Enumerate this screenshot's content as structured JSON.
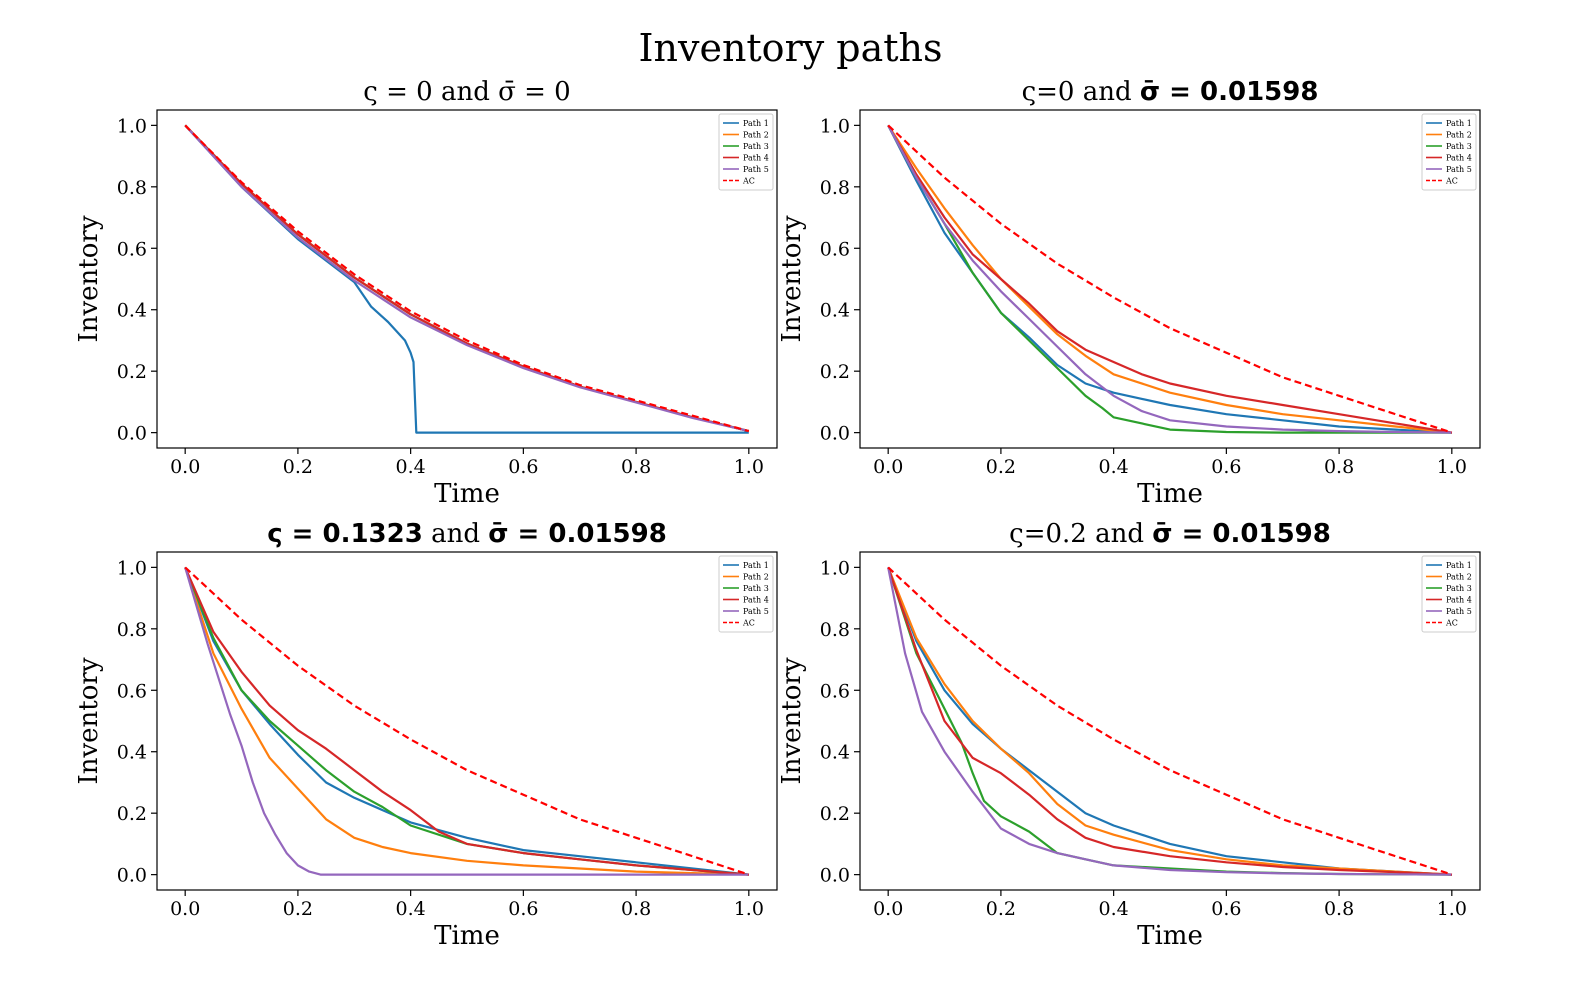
{
  "figure": {
    "title": "Inventory paths"
  },
  "colors": {
    "path1": "#1f77b4",
    "path2": "#ff7f0e",
    "path3": "#2ca02c",
    "path4": "#d62728",
    "path5": "#9467bd",
    "ac": "#ff0000"
  },
  "chart_data": [
    {
      "type": "line",
      "title": "ς = 0 and σ̄ = 0",
      "xlabel": "Time",
      "ylabel": "Inventory",
      "xlim": [
        -0.05,
        1.05
      ],
      "ylim": [
        -0.05,
        1.05
      ],
      "xticks": [
        "0.0",
        "0.2",
        "0.4",
        "0.6",
        "0.8",
        "1.0"
      ],
      "yticks": [
        "0.0",
        "0.2",
        "0.4",
        "0.6",
        "0.8",
        "1.0"
      ],
      "legend": "top-right",
      "series": [
        {
          "name": "Path 1",
          "color": "#1f77b4",
          "x": [
            0,
            0.1,
            0.2,
            0.3,
            0.33,
            0.36,
            0.39,
            0.4,
            0.405,
            0.41,
            0.42,
            0.5,
            1.0
          ],
          "y": [
            1,
            0.8,
            0.63,
            0.49,
            0.41,
            0.36,
            0.3,
            0.26,
            0.23,
            0.0,
            0.0,
            0.0,
            0.0
          ]
        },
        {
          "name": "Path 2",
          "color": "#ff7f0e",
          "x": [
            0,
            0.1,
            0.2,
            0.3,
            0.4,
            0.5,
            0.6,
            0.7,
            0.8,
            0.9,
            1.0
          ],
          "y": [
            1,
            0.81,
            0.645,
            0.505,
            0.385,
            0.29,
            0.215,
            0.15,
            0.1,
            0.05,
            0.005
          ]
        },
        {
          "name": "Path 3",
          "color": "#2ca02c",
          "x": [
            0,
            0.1,
            0.2,
            0.3,
            0.4,
            0.5,
            0.6,
            0.7,
            0.8,
            0.9,
            1.0
          ],
          "y": [
            1,
            0.81,
            0.645,
            0.505,
            0.385,
            0.29,
            0.215,
            0.15,
            0.1,
            0.05,
            0.005
          ]
        },
        {
          "name": "Path 4",
          "color": "#d62728",
          "x": [
            0,
            0.1,
            0.2,
            0.3,
            0.4,
            0.5,
            0.6,
            0.7,
            0.8,
            0.9,
            1.0
          ],
          "y": [
            1,
            0.81,
            0.645,
            0.505,
            0.385,
            0.29,
            0.215,
            0.15,
            0.1,
            0.05,
            0.005
          ]
        },
        {
          "name": "Path 5",
          "color": "#9467bd",
          "x": [
            0,
            0.1,
            0.2,
            0.3,
            0.4,
            0.5,
            0.6,
            0.7,
            0.8,
            0.9,
            1.0
          ],
          "y": [
            1,
            0.8,
            0.635,
            0.495,
            0.375,
            0.285,
            0.21,
            0.148,
            0.098,
            0.048,
            0.005
          ]
        },
        {
          "name": "AC",
          "color": "#ff0000",
          "dashed": true,
          "x": [
            0,
            0.1,
            0.2,
            0.3,
            0.4,
            0.5,
            0.6,
            0.7,
            0.8,
            0.9,
            1.0
          ],
          "y": [
            1,
            0.815,
            0.655,
            0.515,
            0.395,
            0.3,
            0.22,
            0.155,
            0.105,
            0.055,
            0.005
          ]
        }
      ]
    },
    {
      "type": "line",
      "title": "ς=0 and σ̄ = 0.01598",
      "xlabel": "Time",
      "ylabel": "Inventory",
      "xlim": [
        -0.05,
        1.05
      ],
      "ylim": [
        -0.05,
        1.05
      ],
      "xticks": [
        "0.0",
        "0.2",
        "0.4",
        "0.6",
        "0.8",
        "1.0"
      ],
      "yticks": [
        "0.0",
        "0.2",
        "0.4",
        "0.6",
        "0.8",
        "1.0"
      ],
      "legend": "top-right",
      "series": [
        {
          "name": "Path 1",
          "color": "#1f77b4",
          "x": [
            0,
            0.05,
            0.1,
            0.15,
            0.2,
            0.25,
            0.3,
            0.35,
            0.4,
            0.5,
            0.6,
            0.7,
            0.8,
            0.9,
            1.0
          ],
          "y": [
            1,
            0.82,
            0.65,
            0.52,
            0.39,
            0.31,
            0.22,
            0.16,
            0.13,
            0.09,
            0.06,
            0.04,
            0.02,
            0.01,
            0.0
          ]
        },
        {
          "name": "Path 2",
          "color": "#ff7f0e",
          "x": [
            0,
            0.05,
            0.1,
            0.15,
            0.2,
            0.25,
            0.3,
            0.35,
            0.4,
            0.5,
            0.6,
            0.7,
            0.8,
            0.9,
            1.0
          ],
          "y": [
            1,
            0.86,
            0.73,
            0.61,
            0.5,
            0.41,
            0.32,
            0.25,
            0.19,
            0.13,
            0.09,
            0.06,
            0.04,
            0.02,
            0.0
          ]
        },
        {
          "name": "Path 3",
          "color": "#2ca02c",
          "x": [
            0,
            0.05,
            0.1,
            0.15,
            0.2,
            0.25,
            0.3,
            0.35,
            0.38,
            0.4,
            0.5,
            0.6,
            0.7,
            0.8,
            0.9,
            1.0
          ],
          "y": [
            1,
            0.83,
            0.68,
            0.52,
            0.39,
            0.3,
            0.21,
            0.12,
            0.08,
            0.05,
            0.01,
            0.002,
            0,
            0,
            0,
            0
          ]
        },
        {
          "name": "Path 4",
          "color": "#d62728",
          "x": [
            0,
            0.05,
            0.1,
            0.15,
            0.2,
            0.25,
            0.3,
            0.35,
            0.4,
            0.45,
            0.5,
            0.6,
            0.7,
            0.8,
            0.9,
            1.0
          ],
          "y": [
            1,
            0.84,
            0.7,
            0.58,
            0.5,
            0.42,
            0.33,
            0.27,
            0.23,
            0.19,
            0.16,
            0.12,
            0.09,
            0.06,
            0.03,
            0.0
          ]
        },
        {
          "name": "Path 5",
          "color": "#9467bd",
          "x": [
            0,
            0.05,
            0.1,
            0.15,
            0.2,
            0.25,
            0.3,
            0.35,
            0.4,
            0.45,
            0.5,
            0.6,
            0.7,
            0.8,
            0.9,
            1.0
          ],
          "y": [
            1,
            0.83,
            0.68,
            0.56,
            0.46,
            0.37,
            0.28,
            0.19,
            0.12,
            0.07,
            0.04,
            0.02,
            0.01,
            0.005,
            0.002,
            0.0
          ]
        },
        {
          "name": "AC",
          "color": "#ff0000",
          "dashed": true,
          "x": [
            0,
            0.1,
            0.2,
            0.3,
            0.4,
            0.5,
            0.6,
            0.7,
            0.8,
            0.9,
            1.0
          ],
          "y": [
            1,
            0.83,
            0.68,
            0.55,
            0.44,
            0.34,
            0.26,
            0.18,
            0.12,
            0.06,
            0.0
          ]
        }
      ]
    },
    {
      "type": "line",
      "title": "ς = 0.1323 and σ̄ = 0.01598",
      "xlabel": "Time",
      "ylabel": "Inventory",
      "xlim": [
        -0.05,
        1.05
      ],
      "ylim": [
        -0.05,
        1.05
      ],
      "xticks": [
        "0.0",
        "0.2",
        "0.4",
        "0.6",
        "0.8",
        "1.0"
      ],
      "yticks": [
        "0.0",
        "0.2",
        "0.4",
        "0.6",
        "0.8",
        "1.0"
      ],
      "legend": "top-right",
      "series": [
        {
          "name": "Path 1",
          "color": "#1f77b4",
          "x": [
            0,
            0.05,
            0.1,
            0.15,
            0.2,
            0.25,
            0.3,
            0.35,
            0.4,
            0.5,
            0.6,
            0.7,
            0.8,
            0.9,
            1.0
          ],
          "y": [
            1,
            0.76,
            0.6,
            0.49,
            0.39,
            0.3,
            0.25,
            0.21,
            0.17,
            0.12,
            0.08,
            0.06,
            0.04,
            0.02,
            0.0
          ]
        },
        {
          "name": "Path 2",
          "color": "#ff7f0e",
          "x": [
            0,
            0.05,
            0.1,
            0.15,
            0.2,
            0.25,
            0.3,
            0.35,
            0.4,
            0.5,
            0.6,
            0.7,
            0.8,
            0.9,
            1.0
          ],
          "y": [
            1,
            0.72,
            0.54,
            0.38,
            0.28,
            0.18,
            0.12,
            0.09,
            0.07,
            0.045,
            0.03,
            0.02,
            0.01,
            0.005,
            0.0
          ]
        },
        {
          "name": "Path 3",
          "color": "#2ca02c",
          "x": [
            0,
            0.05,
            0.1,
            0.15,
            0.2,
            0.25,
            0.3,
            0.35,
            0.4,
            0.5,
            0.6,
            0.7,
            0.8,
            0.9,
            1.0
          ],
          "y": [
            1,
            0.77,
            0.6,
            0.5,
            0.42,
            0.34,
            0.27,
            0.22,
            0.16,
            0.1,
            0.07,
            0.05,
            0.03,
            0.015,
            0.0
          ]
        },
        {
          "name": "Path 4",
          "color": "#d62728",
          "x": [
            0,
            0.05,
            0.1,
            0.15,
            0.2,
            0.25,
            0.3,
            0.35,
            0.4,
            0.45,
            0.5,
            0.6,
            0.7,
            0.8,
            0.9,
            1.0
          ],
          "y": [
            1,
            0.79,
            0.66,
            0.55,
            0.47,
            0.41,
            0.34,
            0.27,
            0.21,
            0.14,
            0.1,
            0.07,
            0.05,
            0.03,
            0.015,
            0.0
          ]
        },
        {
          "name": "Path 5",
          "color": "#9467bd",
          "x": [
            0,
            0.04,
            0.08,
            0.1,
            0.12,
            0.14,
            0.16,
            0.18,
            0.2,
            0.22,
            0.24,
            0.3,
            0.5,
            1.0
          ],
          "y": [
            1,
            0.75,
            0.52,
            0.42,
            0.3,
            0.2,
            0.13,
            0.07,
            0.03,
            0.01,
            0.0,
            0.0,
            0.0,
            0.0
          ]
        },
        {
          "name": "AC",
          "color": "#ff0000",
          "dashed": true,
          "x": [
            0,
            0.1,
            0.2,
            0.3,
            0.4,
            0.5,
            0.6,
            0.7,
            0.8,
            0.9,
            1.0
          ],
          "y": [
            1,
            0.83,
            0.68,
            0.55,
            0.44,
            0.34,
            0.26,
            0.18,
            0.12,
            0.06,
            0.0
          ]
        }
      ]
    },
    {
      "type": "line",
      "title": "ς=0.2 and σ̄ = 0.01598",
      "xlabel": "Time",
      "ylabel": "Inventory",
      "xlim": [
        -0.05,
        1.05
      ],
      "ylim": [
        -0.05,
        1.05
      ],
      "xticks": [
        "0.0",
        "0.2",
        "0.4",
        "0.6",
        "0.8",
        "1.0"
      ],
      "yticks": [
        "0.0",
        "0.2",
        "0.4",
        "0.6",
        "0.8",
        "1.0"
      ],
      "legend": "top-right",
      "series": [
        {
          "name": "Path 1",
          "color": "#1f77b4",
          "x": [
            0,
            0.05,
            0.1,
            0.15,
            0.2,
            0.25,
            0.3,
            0.35,
            0.4,
            0.5,
            0.6,
            0.7,
            0.8,
            0.9,
            1.0
          ],
          "y": [
            1,
            0.76,
            0.6,
            0.49,
            0.41,
            0.34,
            0.27,
            0.2,
            0.16,
            0.1,
            0.06,
            0.04,
            0.02,
            0.01,
            0.0
          ]
        },
        {
          "name": "Path 2",
          "color": "#ff7f0e",
          "x": [
            0,
            0.05,
            0.1,
            0.15,
            0.2,
            0.25,
            0.3,
            0.35,
            0.4,
            0.5,
            0.6,
            0.7,
            0.8,
            0.9,
            1.0
          ],
          "y": [
            1,
            0.77,
            0.62,
            0.5,
            0.41,
            0.33,
            0.23,
            0.16,
            0.13,
            0.08,
            0.05,
            0.03,
            0.02,
            0.01,
            0.0
          ]
        },
        {
          "name": "Path 3",
          "color": "#2ca02c",
          "x": [
            0,
            0.05,
            0.1,
            0.13,
            0.15,
            0.17,
            0.2,
            0.25,
            0.3,
            0.35,
            0.4,
            0.5,
            0.6,
            0.7,
            0.8,
            0.9,
            1.0
          ],
          "y": [
            1,
            0.72,
            0.54,
            0.43,
            0.33,
            0.24,
            0.19,
            0.14,
            0.07,
            0.05,
            0.03,
            0.02,
            0.01,
            0.005,
            0.002,
            0.001,
            0.0
          ]
        },
        {
          "name": "Path 4",
          "color": "#d62728",
          "x": [
            0,
            0.05,
            0.1,
            0.15,
            0.2,
            0.25,
            0.3,
            0.35,
            0.4,
            0.5,
            0.6,
            0.7,
            0.8,
            0.9,
            1.0
          ],
          "y": [
            1,
            0.73,
            0.5,
            0.38,
            0.33,
            0.26,
            0.18,
            0.12,
            0.09,
            0.06,
            0.04,
            0.025,
            0.015,
            0.008,
            0.0
          ]
        },
        {
          "name": "Path 5",
          "color": "#9467bd",
          "x": [
            0,
            0.03,
            0.06,
            0.1,
            0.15,
            0.2,
            0.25,
            0.3,
            0.35,
            0.4,
            0.5,
            0.6,
            0.7,
            0.8,
            0.9,
            1.0
          ],
          "y": [
            1,
            0.72,
            0.53,
            0.4,
            0.27,
            0.15,
            0.1,
            0.07,
            0.05,
            0.03,
            0.015,
            0.008,
            0.004,
            0.002,
            0.001,
            0.0
          ]
        },
        {
          "name": "AC",
          "color": "#ff0000",
          "dashed": true,
          "x": [
            0,
            0.1,
            0.2,
            0.3,
            0.4,
            0.5,
            0.6,
            0.7,
            0.8,
            0.9,
            1.0
          ],
          "y": [
            1,
            0.83,
            0.68,
            0.55,
            0.44,
            0.34,
            0.26,
            0.18,
            0.12,
            0.06,
            0.0
          ]
        }
      ]
    }
  ]
}
